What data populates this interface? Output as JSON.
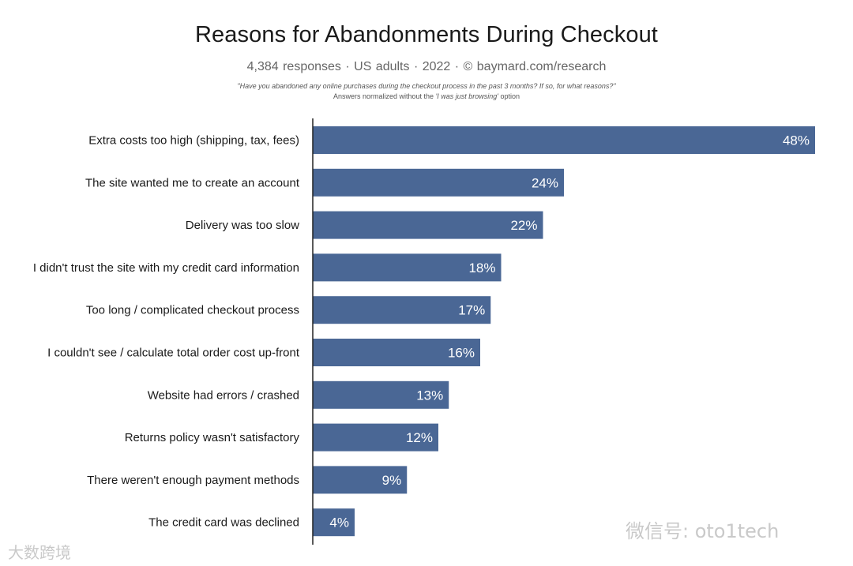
{
  "header": {
    "title": "Reasons for Abandonments During Checkout",
    "subtitle": "4,384 responses  ·  US adults  ·  2022  ·  ©  baymard.com/research",
    "question": "\"Have you abandoned any online purchases during the checkout process in the past 3 months? If so, for what reasons?\"",
    "note_prefix": "Answers normalized without the ",
    "note_option": "'I was just browsing'",
    "note_suffix": " option"
  },
  "watermarks": {
    "right": "微信号: oto1tech",
    "left": "大数跨境"
  },
  "colors": {
    "bar": "#4a6795",
    "axis": "#222222",
    "bar_label": "#ffffff"
  },
  "chart_data": {
    "type": "bar",
    "orientation": "horizontal",
    "title": "Reasons for Abandonments During Checkout",
    "categories": [
      "Extra costs too high (shipping, tax, fees)",
      "The site wanted me to create an account",
      "Delivery was too slow",
      "I didn't trust the site with my credit card information",
      "Too long / complicated checkout process",
      "I couldn't see / calculate total order cost up-front",
      "Website had errors / crashed",
      "Returns policy wasn't satisfactory",
      "There weren't enough payment methods",
      "The credit card was declined"
    ],
    "values": [
      48,
      24,
      22,
      18,
      17,
      16,
      13,
      12,
      9,
      4
    ],
    "labels": [
      "48%",
      "24%",
      "22%",
      "18%",
      "17%",
      "16%",
      "13%",
      "12%",
      "9%",
      "4%"
    ],
    "xlim": [
      0,
      48
    ],
    "unit": "%",
    "grid": false,
    "legend": "none"
  }
}
